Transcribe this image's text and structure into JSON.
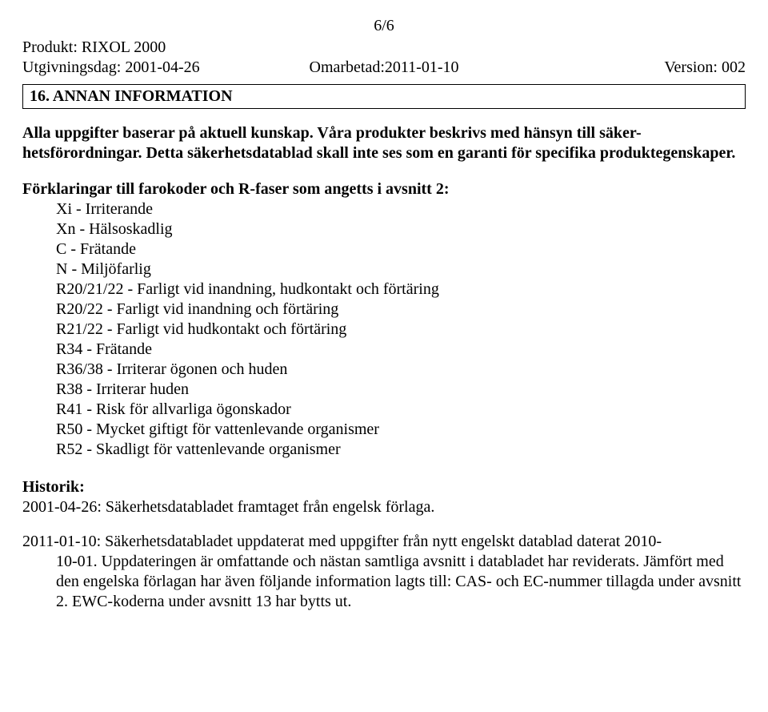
{
  "header": {
    "page_num": "6/6",
    "product_label": "Produkt:",
    "product_name": "RIXOL 2000",
    "issue_label": "Utgivningsdag:",
    "issue_date": "2001-04-26",
    "revised_label": "Omarbetad:",
    "revised_date": "2011-01-10",
    "version_label": "Version:",
    "version_num": "002"
  },
  "section": {
    "number": "16.",
    "title": "ANNAN INFORMATION"
  },
  "intro": {
    "text": "Alla uppgifter baserar på aktuell kunskap. Våra produkter beskrivs med hänsyn till säker-hetsförordningar. Detta säkerhetsdatablad skall inte ses som en garanti för specifika produktegenskaper."
  },
  "explanations": {
    "heading": "Förklaringar till farokoder och R-faser som angetts i avsnitt 2:",
    "items": [
      "Xi  - Irriterande",
      "Xn - Hälsoskadlig",
      "C - Frätande",
      "N - Miljöfarlig",
      "R20/21/22 - Farligt vid inandning, hudkontakt och förtäring",
      "R20/22 - Farligt vid inandning och förtäring",
      "R21/22 - Farligt vid hudkontakt och förtäring",
      "R34 - Frätande",
      "R36/38 - Irriterar ögonen och huden",
      "R38 - Irriterar huden",
      "R41 - Risk för allvarliga ögonskador",
      "R50 - Mycket giftigt för vattenlevande organismer",
      "R52 - Skadligt för vattenlevande organismer"
    ]
  },
  "historik": {
    "heading": "Historik:",
    "entry1": "2001-04-26: Säkerhetsdatabladet framtaget från engelsk förlaga.",
    "entry2_line1": "2011-01-10: Säkerhetsdatabladet uppdaterat med uppgifter från nytt engelskt datablad daterat 2010-",
    "entry2_cont": "10-01. Uppdateringen är omfattande och nästan samtliga avsnitt i databladet har reviderats. Jämfört med den engelska förlagan har även följande information lagts till: CAS- och EC-nummer tillagda under avsnitt 2. EWC-koderna under avsnitt 13 har bytts ut."
  }
}
